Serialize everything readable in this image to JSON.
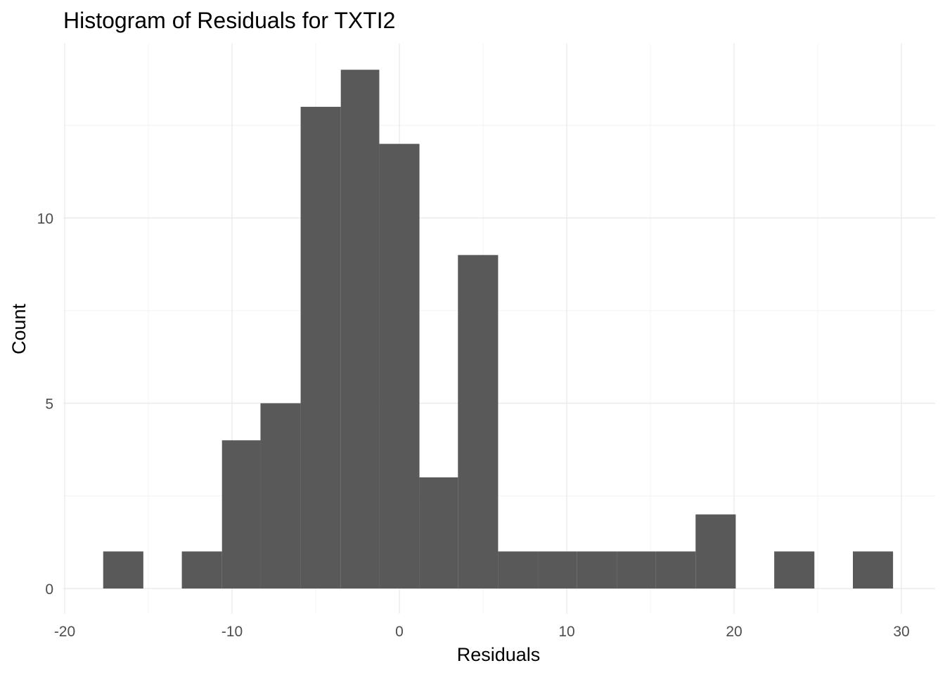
{
  "chart_data": {
    "type": "bar",
    "title": "Histogram of Residuals for TXTI2",
    "xlabel": "Residuals",
    "ylabel": "Count",
    "xlim": [
      -20,
      30.5
    ],
    "ylim": [
      0,
      14
    ],
    "x_ticks": [
      -20,
      -10,
      0,
      10,
      20,
      30
    ],
    "y_ticks": [
      0,
      5,
      10
    ],
    "x_tick_labels": [
      "-20",
      "-10",
      "0",
      "10",
      "20",
      "30"
    ],
    "y_tick_labels": [
      "0",
      "5",
      "10"
    ],
    "grid": true,
    "bar_color": "#595959",
    "bins": [
      {
        "x0": -17.7,
        "x1": -15.3,
        "count": 1
      },
      {
        "x0": -13.0,
        "x1": -10.6,
        "count": 1
      },
      {
        "x0": -10.6,
        "x1": -8.3,
        "count": 4
      },
      {
        "x0": -8.3,
        "x1": -5.9,
        "count": 5
      },
      {
        "x0": -5.9,
        "x1": -3.5,
        "count": 13
      },
      {
        "x0": -3.5,
        "x1": -1.2,
        "count": 14
      },
      {
        "x0": -1.2,
        "x1": 1.2,
        "count": 12
      },
      {
        "x0": 1.2,
        "x1": 3.5,
        "count": 3
      },
      {
        "x0": 3.5,
        "x1": 5.9,
        "count": 9
      },
      {
        "x0": 5.9,
        "x1": 8.3,
        "count": 1
      },
      {
        "x0": 8.3,
        "x1": 10.6,
        "count": 1
      },
      {
        "x0": 10.6,
        "x1": 13.0,
        "count": 1
      },
      {
        "x0": 13.0,
        "x1": 15.3,
        "count": 1
      },
      {
        "x0": 15.3,
        "x1": 17.7,
        "count": 1
      },
      {
        "x0": 17.7,
        "x1": 20.1,
        "count": 2
      },
      {
        "x0": 22.4,
        "x1": 24.8,
        "count": 1
      },
      {
        "x0": 27.1,
        "x1": 29.5,
        "count": 1
      }
    ]
  }
}
